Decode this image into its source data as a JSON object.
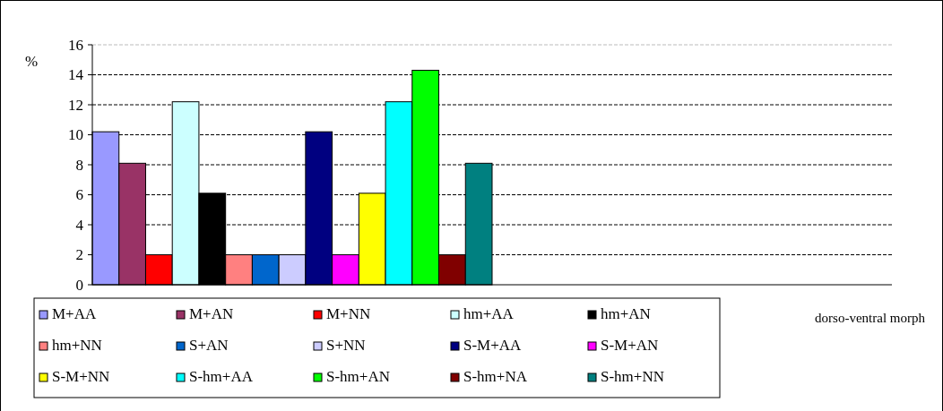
{
  "chart_data": {
    "type": "bar",
    "xlabel": "dorso-ventral morph",
    "ylabel": "%",
    "categories": [
      null,
      null
    ],
    "ylim": [
      0,
      16
    ],
    "yticks": [
      0,
      2,
      4,
      6,
      8,
      10,
      12,
      14,
      16
    ],
    "grid": "y",
    "legend": "bottom",
    "series": [
      {
        "name": "M+AA",
        "color": "#9999ff",
        "values": [
          10.2,
          null
        ]
      },
      {
        "name": "M+AN",
        "color": "#993366",
        "values": [
          8.1,
          null
        ]
      },
      {
        "name": "M+NN",
        "color": "#ff0000",
        "values": [
          2,
          null
        ]
      },
      {
        "name": "hm+AA",
        "color": "#ccffff",
        "values": [
          12.2,
          null
        ]
      },
      {
        "name": "hm+AN",
        "color": "#000000",
        "values": [
          6.1,
          null
        ]
      },
      {
        "name": "hm+NN",
        "color": "#ff8080",
        "values": [
          2,
          null
        ]
      },
      {
        "name": "S+AN",
        "color": "#0066cc",
        "values": [
          2,
          null
        ]
      },
      {
        "name": "S+NN",
        "color": "#ccccff",
        "values": [
          2,
          null
        ]
      },
      {
        "name": "S-M+AA",
        "color": "#000080",
        "values": [
          10.2,
          null
        ]
      },
      {
        "name": "S-M+AN",
        "color": "#ff00ff",
        "values": [
          2,
          null
        ]
      },
      {
        "name": "S-M+NN",
        "color": "#ffff00",
        "values": [
          6.1,
          null
        ]
      },
      {
        "name": "S-hm+AA",
        "color": "#00ffff",
        "values": [
          12.2,
          null
        ]
      },
      {
        "name": "S-hm+AN",
        "color": "#00ff00",
        "values": [
          14.3,
          null
        ]
      },
      {
        "name": "S-hm+NA",
        "color": "#800000",
        "values": [
          2,
          null
        ]
      },
      {
        "name": "S-hm+NN",
        "color": "#008080",
        "values": [
          8.1,
          null
        ]
      }
    ]
  }
}
